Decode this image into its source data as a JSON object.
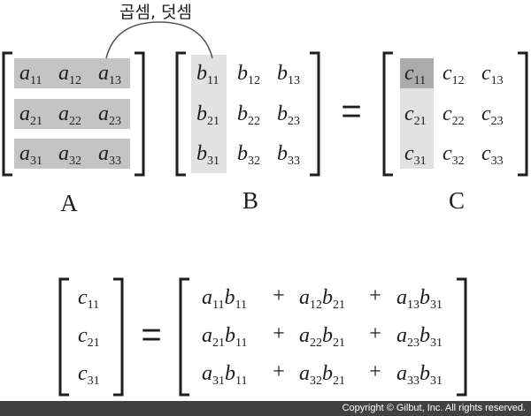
{
  "heading": "곱셈, 덧셈",
  "matrices": {
    "a": {
      "label": "A",
      "rows": [
        [
          {
            "v": "a",
            "s": "11"
          },
          {
            "v": "a",
            "s": "12"
          },
          {
            "v": "a",
            "s": "13"
          }
        ],
        [
          {
            "v": "a",
            "s": "21"
          },
          {
            "v": "a",
            "s": "22"
          },
          {
            "v": "a",
            "s": "23"
          }
        ],
        [
          {
            "v": "a",
            "s": "31"
          },
          {
            "v": "a",
            "s": "32"
          },
          {
            "v": "a",
            "s": "33"
          }
        ]
      ]
    },
    "b": {
      "label": "B",
      "rows": [
        [
          {
            "v": "b",
            "s": "11"
          },
          {
            "v": "b",
            "s": "12"
          },
          {
            "v": "b",
            "s": "13"
          }
        ],
        [
          {
            "v": "b",
            "s": "21"
          },
          {
            "v": "b",
            "s": "22"
          },
          {
            "v": "b",
            "s": "23"
          }
        ],
        [
          {
            "v": "b",
            "s": "31"
          },
          {
            "v": "b",
            "s": "32"
          },
          {
            "v": "b",
            "s": "33"
          }
        ]
      ]
    },
    "c": {
      "label": "C",
      "rows": [
        [
          {
            "v": "c",
            "s": "11"
          },
          {
            "v": "c",
            "s": "12"
          },
          {
            "v": "c",
            "s": "13"
          }
        ],
        [
          {
            "v": "c",
            "s": "21"
          },
          {
            "v": "c",
            "s": "22"
          },
          {
            "v": "c",
            "s": "23"
          }
        ],
        [
          {
            "v": "c",
            "s": "31"
          },
          {
            "v": "c",
            "s": "32"
          },
          {
            "v": "c",
            "s": "33"
          }
        ]
      ]
    }
  },
  "equals_sign": "=",
  "expansion": {
    "lhs": [
      {
        "v": "c",
        "s": "11"
      },
      {
        "v": "c",
        "s": "21"
      },
      {
        "v": "c",
        "s": "31"
      }
    ],
    "plus_sign": "+",
    "rows": [
      [
        [
          {
            "v": "a",
            "s": "11"
          },
          {
            "v": "b",
            "s": "11"
          }
        ],
        [
          {
            "v": "a",
            "s": "12"
          },
          {
            "v": "b",
            "s": "21"
          }
        ],
        [
          {
            "v": "a",
            "s": "13"
          },
          {
            "v": "b",
            "s": "31"
          }
        ]
      ],
      [
        [
          {
            "v": "a",
            "s": "21"
          },
          {
            "v": "b",
            "s": "11"
          }
        ],
        [
          {
            "v": "a",
            "s": "22"
          },
          {
            "v": "b",
            "s": "21"
          }
        ],
        [
          {
            "v": "a",
            "s": "23"
          },
          {
            "v": "b",
            "s": "31"
          }
        ]
      ],
      [
        [
          {
            "v": "a",
            "s": "31"
          },
          {
            "v": "b",
            "s": "11"
          }
        ],
        [
          {
            "v": "a",
            "s": "32"
          },
          {
            "v": "b",
            "s": "21"
          }
        ],
        [
          {
            "v": "a",
            "s": "33"
          },
          {
            "v": "b",
            "s": "31"
          }
        ]
      ]
    ]
  },
  "footer": "Copyright © Gilbut, Inc. All rights reserved.",
  "colors": {
    "row_highlight": "#c4c4c4",
    "col_highlight": "#e2e2e2",
    "cell_highlight": "#ababab",
    "text": "#1e1e1e",
    "footer_bg": "#414141"
  }
}
